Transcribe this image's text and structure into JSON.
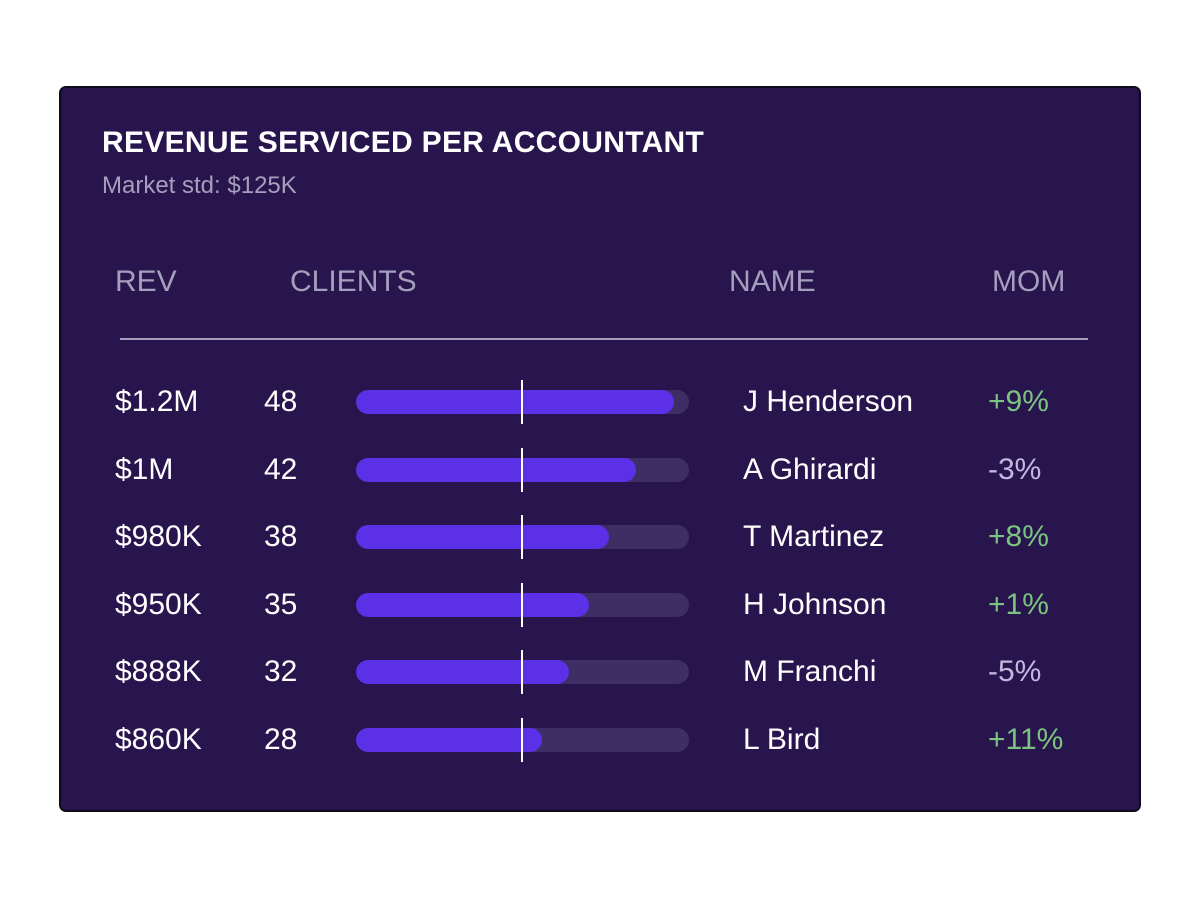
{
  "card": {
    "title": "REVENUE SERVICED PER ACCOUNTANT",
    "subtitle": "Market std: $125K"
  },
  "columns": {
    "rev": "REV",
    "clients": "CLIENTS",
    "name": "NAME",
    "mom": "MOM"
  },
  "colors": {
    "background": "#28154e",
    "bar_fill": "#5b30e6",
    "bar_track": "#3e2e66",
    "positive": "#7bc47f",
    "negative": "#c2b8df",
    "muted_text": "#a59fbe"
  },
  "rows": [
    {
      "rev": "$1.2M",
      "clients": "48",
      "name": "J Henderson",
      "mom": "+9%",
      "trend": "up",
      "bar_fraction": 0.955
    },
    {
      "rev": "$1M",
      "clients": "42",
      "name": "A Ghirardi",
      "mom": "-3%",
      "trend": "down",
      "bar_fraction": 0.84
    },
    {
      "rev": "$980K",
      "clients": "38",
      "name": "T Martinez",
      "mom": "+8%",
      "trend": "up",
      "bar_fraction": 0.76
    },
    {
      "rev": "$950K",
      "clients": "35",
      "name": "H Johnson",
      "mom": "+1%",
      "trend": "up",
      "bar_fraction": 0.7
    },
    {
      "rev": "$888K",
      "clients": "32",
      "name": "M Franchi",
      "mom": "-5%",
      "trend": "down",
      "bar_fraction": 0.64
    },
    {
      "rev": "$860K",
      "clients": "28",
      "name": "L Bird",
      "mom": "+11%",
      "trend": "up",
      "bar_fraction": 0.56
    }
  ],
  "market_marker_fraction": 0.495
}
